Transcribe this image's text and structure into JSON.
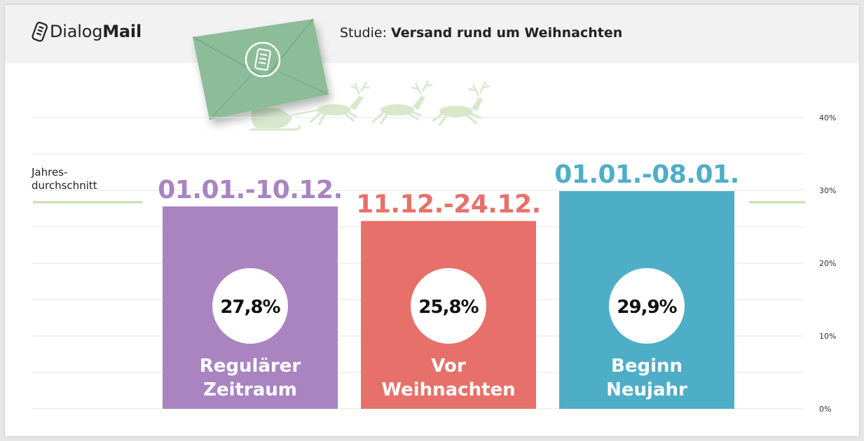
{
  "header": {
    "logo_regular": "Dialog",
    "logo_bold": "Mail",
    "subtitle_prefix": "Studie: ",
    "subtitle_bold": "Versand rund um Weihnachten"
  },
  "colors": {
    "purple": "#a984c1",
    "red": "#e8706a",
    "blue": "#4eaec8",
    "average_line": "#c5dcb4",
    "envelope": "#8cbc98",
    "reindeer": "#d7e8cb"
  },
  "chart_data": {
    "type": "bar",
    "title": "",
    "categories": [
      "Regulärer Zeitraum",
      "Vor Weihnachten",
      "Beginn Neujahr"
    ],
    "category_lines": [
      [
        "Regulärer",
        "Zeitraum"
      ],
      [
        "Vor",
        "Weihnachten"
      ],
      [
        "Beginn",
        "Neujahr"
      ]
    ],
    "periods": [
      "01.01.-10.12.",
      "11.12.-24.12.",
      "01.01.-08.01."
    ],
    "values": [
      27.8,
      25.8,
      29.9
    ],
    "value_labels": [
      "27,8%",
      "25,8%",
      "29,9%"
    ],
    "bar_colors": [
      "#a984c1",
      "#e8706a",
      "#4eaec8"
    ],
    "ylim": [
      0,
      40
    ],
    "yticks": [
      0,
      10,
      20,
      30,
      40
    ],
    "ytick_labels": [
      "0%",
      "10%",
      "20%",
      "30%",
      "40%"
    ],
    "average": {
      "label_lines": [
        "Jahres-",
        "durchschnitt"
      ],
      "value": 27.8
    },
    "grid": true
  }
}
